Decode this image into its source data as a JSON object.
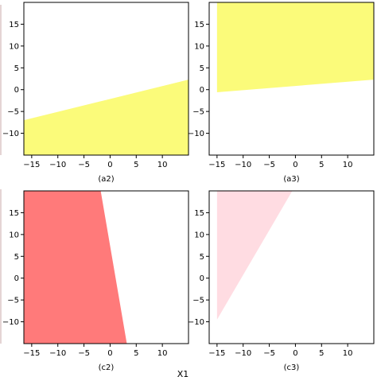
{
  "chart_data": [
    {
      "type": "area",
      "panel_label": "(a2)",
      "x_range": [
        -16.5,
        15
      ],
      "y_range": [
        -15,
        20
      ],
      "x_ticks": [
        -15,
        -10,
        -5,
        0,
        5,
        10
      ],
      "y_ticks": [
        -10,
        -5,
        0,
        5,
        10,
        15
      ],
      "grid": false,
      "region": {
        "color": "#fbfb7a",
        "polygon": [
          [
            -16.5,
            -7.0
          ],
          [
            15,
            2.3
          ],
          [
            15,
            -15
          ],
          [
            -16.5,
            -15
          ]
        ]
      }
    },
    {
      "type": "area",
      "panel_label": "(a3)",
      "x_range": [
        -16.5,
        15
      ],
      "y_range": [
        -15,
        20
      ],
      "x_ticks": [
        -15,
        -10,
        -5,
        0,
        5,
        10
      ],
      "y_ticks": [
        -10,
        -5,
        0,
        5,
        10,
        15
      ],
      "grid": false,
      "region": {
        "color": "#fbfb7a",
        "polygon": [
          [
            -15,
            -0.6
          ],
          [
            15,
            2.3
          ],
          [
            15,
            20
          ],
          [
            -15,
            20
          ]
        ]
      }
    },
    {
      "type": "area",
      "panel_label": "(c2)",
      "x_range": [
        -16.5,
        15
      ],
      "y_range": [
        -15,
        20
      ],
      "x_ticks": [
        -15,
        -10,
        -5,
        0,
        5,
        10
      ],
      "y_ticks": [
        -10,
        -5,
        0,
        5,
        10,
        15
      ],
      "grid": false,
      "region": {
        "color": "#ff7a7a",
        "polygon": [
          [
            -16.5,
            20
          ],
          [
            -1.8,
            20
          ],
          [
            3.2,
            -15
          ],
          [
            -16.5,
            -15
          ]
        ]
      }
    },
    {
      "type": "area",
      "panel_label": "(c3)",
      "x_range": [
        -16.5,
        15
      ],
      "y_range": [
        -15,
        20
      ],
      "x_ticks": [
        -15,
        -10,
        -5,
        0,
        5,
        10
      ],
      "y_ticks": [
        -10,
        -5,
        0,
        5,
        10,
        15
      ],
      "grid": false,
      "region": {
        "color": "#ffdce2",
        "polygon": [
          [
            -15,
            -9.5
          ],
          [
            -15,
            20
          ],
          [
            -0.6,
            20
          ]
        ]
      }
    }
  ],
  "figure_xlabel": "X1",
  "colors": {
    "yellow": "#fbfb7a",
    "red": "#ff7a7a",
    "pink": "#ffdce2",
    "axis": "#000000"
  }
}
